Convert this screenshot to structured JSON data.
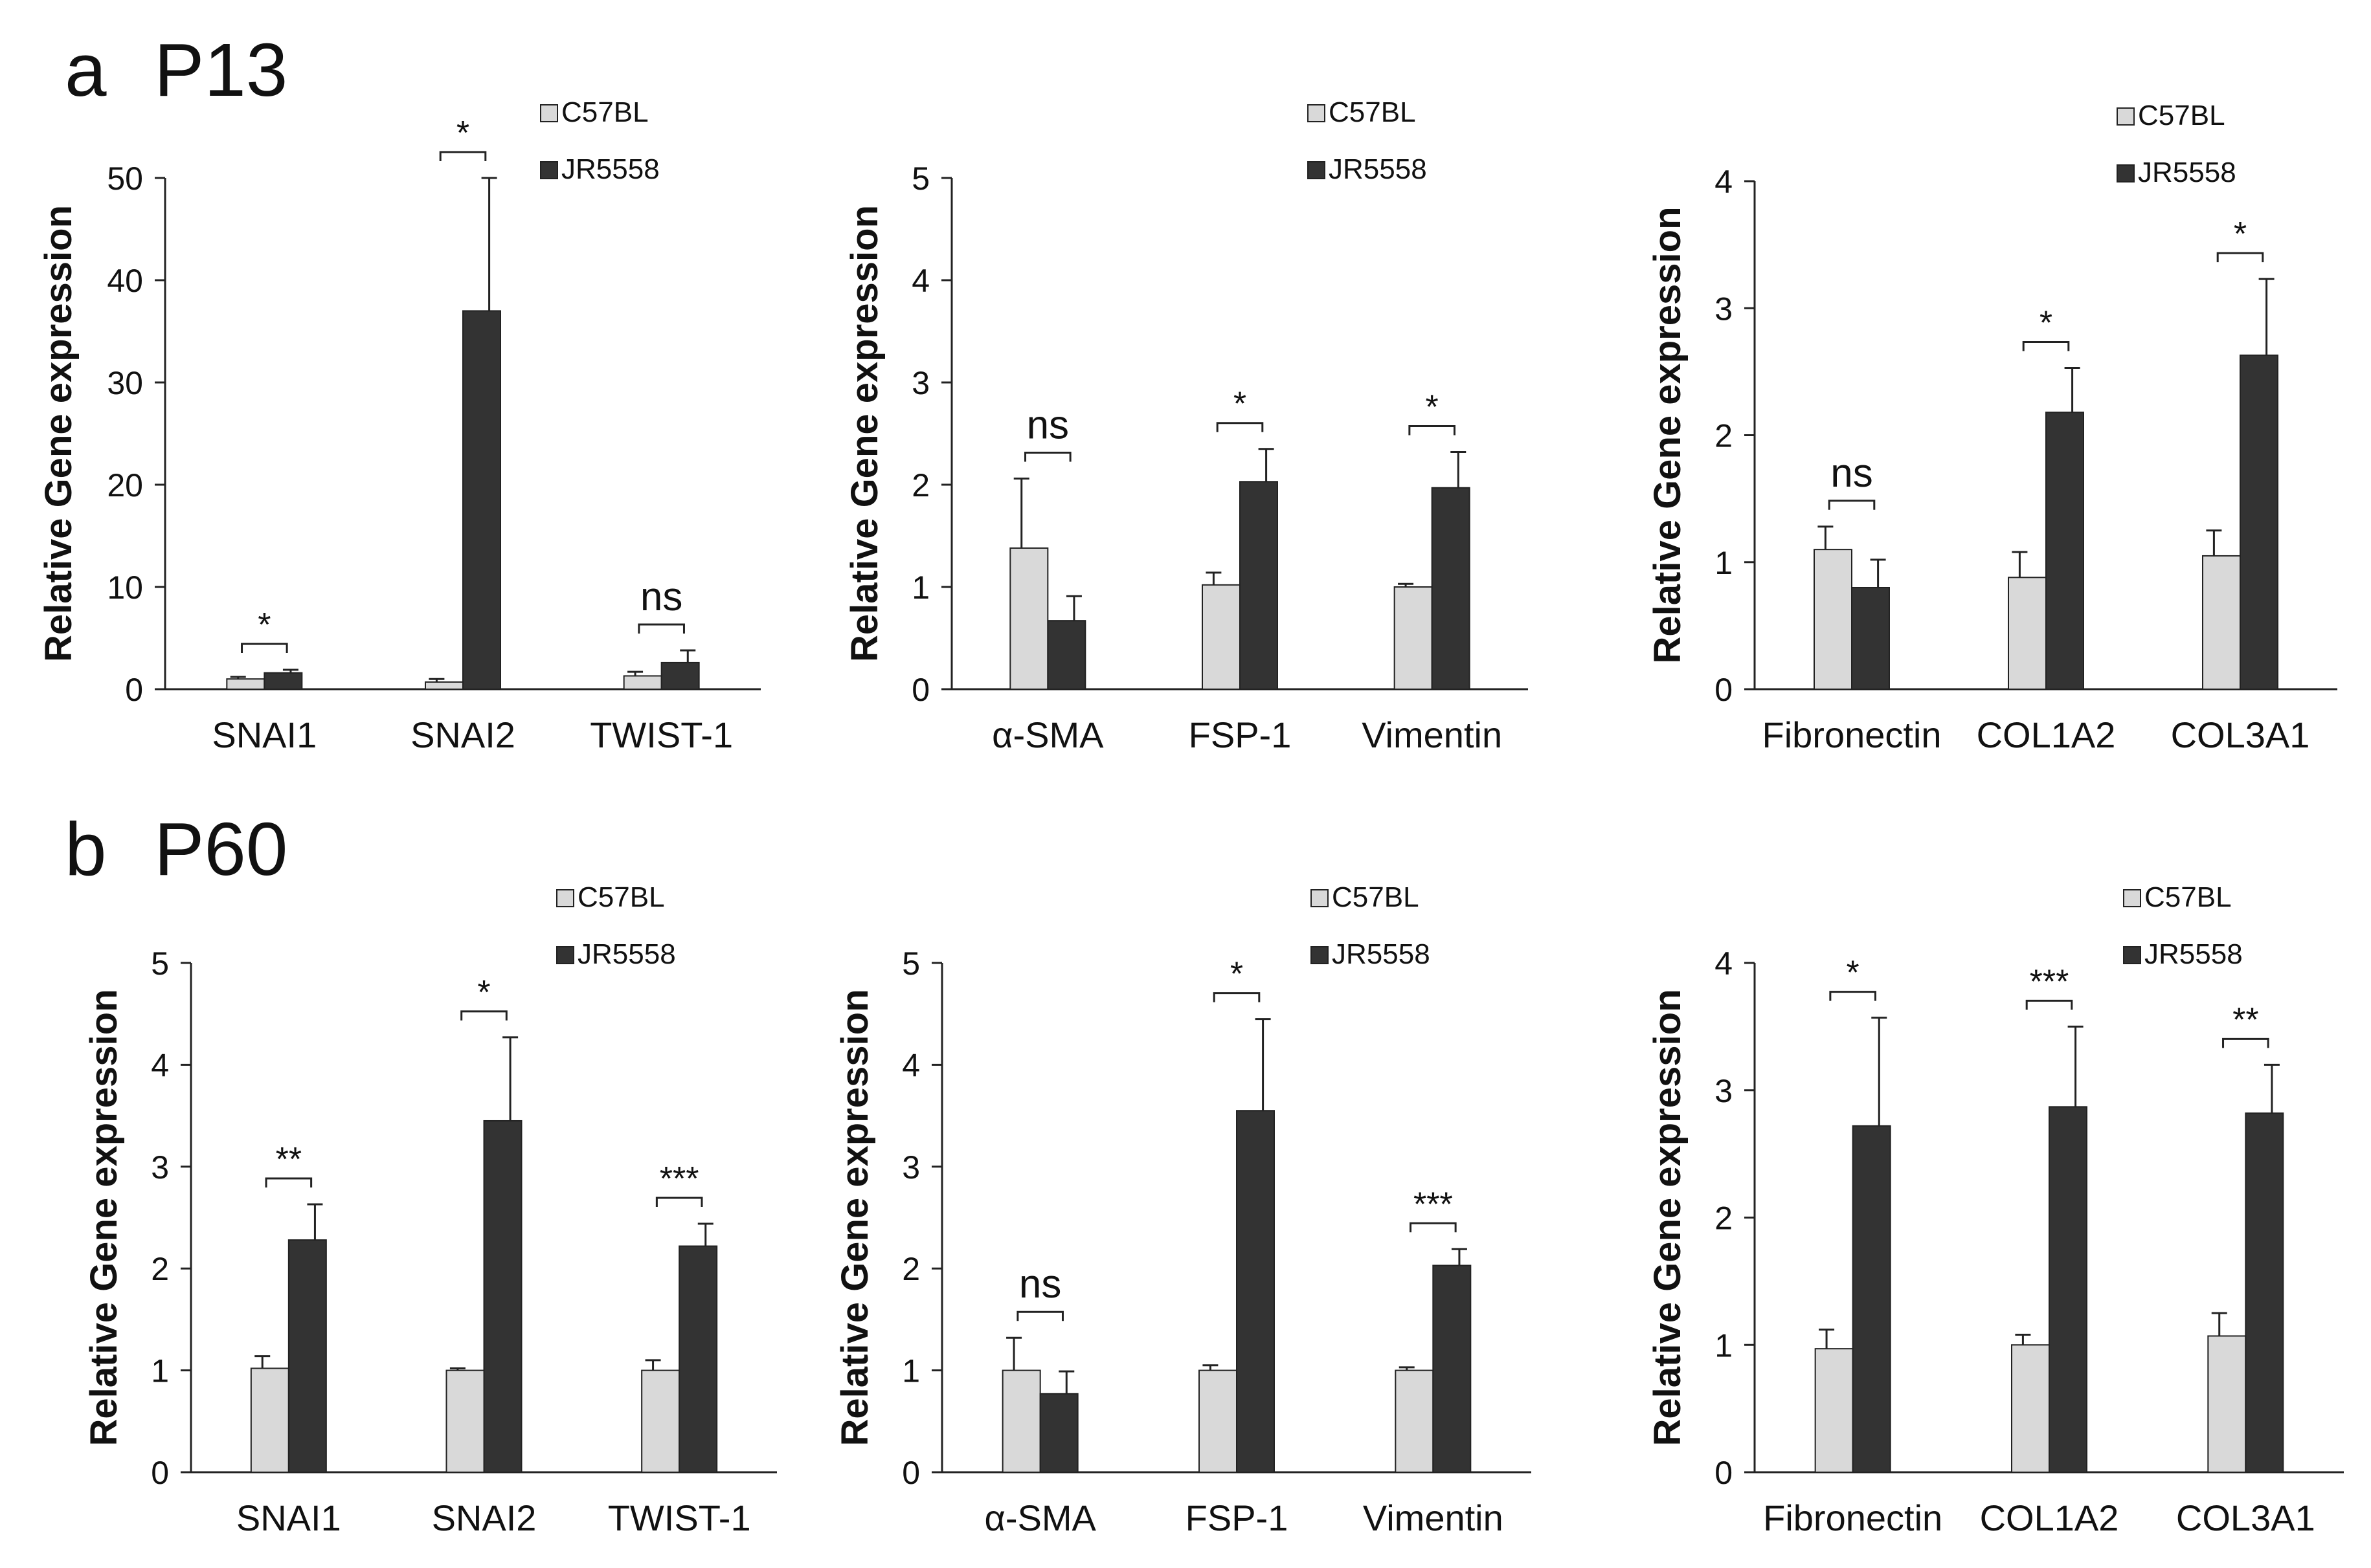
{
  "figure": {
    "panels": [
      {
        "letter": "a",
        "title": "P13"
      },
      {
        "letter": "b",
        "title": "P60"
      }
    ]
  },
  "chart_data": [
    {
      "type": "bar",
      "panel": "a",
      "title": "",
      "xlabel": "",
      "ylabel": "Relative Gene expression",
      "ylim": [
        0,
        50
      ],
      "yticks": [
        0,
        10,
        20,
        30,
        40,
        50
      ],
      "categories": [
        "SNAI1",
        "SNAI2",
        "TWIST-1"
      ],
      "series": [
        {
          "name": "C57BL",
          "color": "#d9d9d9",
          "values": [
            1.0,
            0.7,
            1.3
          ],
          "errors": [
            0.2,
            0.3,
            0.4
          ]
        },
        {
          "name": "JR5558",
          "color": "#333333",
          "values": [
            1.6,
            37.0,
            2.6
          ],
          "errors": [
            0.3,
            13.0,
            1.2
          ]
        }
      ],
      "significance": [
        "*",
        "*",
        "ns"
      ]
    },
    {
      "type": "bar",
      "panel": "a",
      "title": "",
      "xlabel": "",
      "ylabel": "Relative Gene expression",
      "ylim": [
        0,
        5
      ],
      "yticks": [
        0,
        1,
        2,
        3,
        4,
        5
      ],
      "categories": [
        "α-SMA",
        "FSP-1",
        "Vimentin"
      ],
      "series": [
        {
          "name": "C57BL",
          "color": "#d9d9d9",
          "values": [
            1.38,
            1.02,
            1.0
          ],
          "errors": [
            0.68,
            0.12,
            0.03
          ]
        },
        {
          "name": "JR5558",
          "color": "#333333",
          "values": [
            0.67,
            2.03,
            1.97
          ],
          "errors": [
            0.24,
            0.32,
            0.35
          ]
        }
      ],
      "significance": [
        "ns",
        "*",
        "*"
      ]
    },
    {
      "type": "bar",
      "panel": "a",
      "title": "",
      "xlabel": "",
      "ylabel": "Relative Gene expression",
      "ylim": [
        0,
        4
      ],
      "yticks": [
        0,
        1,
        2,
        3,
        4
      ],
      "categories": [
        "Fibronectin",
        "COL1A2",
        "COL3A1"
      ],
      "series": [
        {
          "name": "C57BL",
          "color": "#d9d9d9",
          "values": [
            1.1,
            0.88,
            1.05
          ],
          "errors": [
            0.18,
            0.2,
            0.2
          ]
        },
        {
          "name": "JR5558",
          "color": "#333333",
          "values": [
            0.8,
            2.18,
            2.63
          ],
          "errors": [
            0.22,
            0.35,
            0.6
          ]
        }
      ],
      "significance": [
        "ns",
        "*",
        "*"
      ]
    },
    {
      "type": "bar",
      "panel": "b",
      "title": "",
      "xlabel": "",
      "ylabel": "Relative Gene expression",
      "ylim": [
        0,
        5
      ],
      "yticks": [
        0,
        1,
        2,
        3,
        4,
        5
      ],
      "categories": [
        "SNAI1",
        "SNAI2",
        "TWIST-1"
      ],
      "series": [
        {
          "name": "C57BL",
          "color": "#d9d9d9",
          "values": [
            1.02,
            1.0,
            1.0
          ],
          "errors": [
            0.12,
            0.02,
            0.1
          ]
        },
        {
          "name": "JR5558",
          "color": "#333333",
          "values": [
            2.28,
            3.45,
            2.22
          ],
          "errors": [
            0.35,
            0.82,
            0.22
          ]
        }
      ],
      "significance": [
        "**",
        "*",
        "***"
      ]
    },
    {
      "type": "bar",
      "panel": "b",
      "title": "",
      "xlabel": "",
      "ylabel": "Relative Gene expression",
      "ylim": [
        0,
        5
      ],
      "yticks": [
        0,
        1,
        2,
        3,
        4,
        5
      ],
      "categories": [
        "α-SMA",
        "FSP-1",
        "Vimentin"
      ],
      "series": [
        {
          "name": "C57BL",
          "color": "#d9d9d9",
          "values": [
            1.0,
            1.0,
            1.0
          ],
          "errors": [
            0.32,
            0.05,
            0.03
          ]
        },
        {
          "name": "JR5558",
          "color": "#333333",
          "values": [
            0.77,
            3.55,
            2.03
          ],
          "errors": [
            0.22,
            0.9,
            0.16
          ]
        }
      ],
      "significance": [
        "ns",
        "*",
        "***"
      ]
    },
    {
      "type": "bar",
      "panel": "b",
      "title": "",
      "xlabel": "",
      "ylabel": "Relative Gene expression",
      "ylim": [
        0,
        4
      ],
      "yticks": [
        0,
        1,
        2,
        3,
        4
      ],
      "categories": [
        "Fibronectin",
        "COL1A2",
        "COL3A1"
      ],
      "series": [
        {
          "name": "C57BL",
          "color": "#d9d9d9",
          "values": [
            0.97,
            1.0,
            1.07
          ],
          "errors": [
            0.15,
            0.08,
            0.18
          ]
        },
        {
          "name": "JR5558",
          "color": "#333333",
          "values": [
            2.72,
            2.87,
            2.82
          ],
          "errors": [
            0.85,
            0.63,
            0.38
          ]
        }
      ],
      "significance": [
        "*",
        "***",
        "**"
      ]
    }
  ]
}
